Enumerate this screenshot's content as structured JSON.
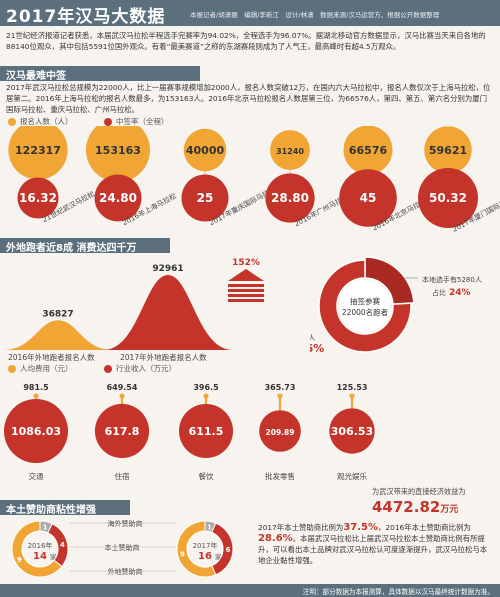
{
  "header": {
    "title": "2017年汉马大数据",
    "credits": "本报记者/胡潇丽　编辑/李新江　设计/林潇　数据来源/汉马运营方、根据公开数据整理"
  },
  "intro": "21世纪经济报道记者获悉，本届武汉马拉松半程选手完赛率为94.02%，全程选手为96.07%。据湖北移动官方数据显示，汉马比赛当天来自各地的88140位观众，其中包括5591位国外观众。有着“最美赛道”之称的东湖赛段则成为了人气王，最高峰时有超4.5万观众。",
  "section1": {
    "title": "汉马最难中签",
    "text": "2017年武汉马拉松总规模为22000人，比上一届赛事规模增加2000人，报名人数突破12万，在国内六大马拉松中，报名人数仅次于上海马拉松，位居第二。2016年上海马拉松的报名人数最多，为153163人。2016年北京马拉松报名人数居第三位，为66576人，第四、第五、第六名分别为厦门国际马拉松、重庆马拉松、广州马拉松。",
    "legend_applicants": "报名人数（人）",
    "legend_rate": "中签率（全程）"
  },
  "chart_data": [
    {
      "type": "bubble",
      "categories": [
        "21世纪武汉马拉松",
        "2016年上海马拉松",
        "2017年重庆国际马拉松",
        "2016年广州马拉松",
        "2016年北京马拉松",
        "2017年厦门国际马拉松"
      ],
      "series": [
        {
          "name": "报名人数（人）",
          "values": [
            122317,
            153163,
            40000,
            31240,
            66576,
            59621
          ]
        },
        {
          "name": "中签率（全程）",
          "values": [
            16.32,
            24.8,
            25,
            28.8,
            45,
            50.32
          ]
        }
      ]
    },
    {
      "type": "area",
      "categories": [
        "2016年外地跑者报名人数",
        "2017年外地跑者报名人数"
      ],
      "values": [
        36827,
        92961
      ],
      "growth": "152%"
    },
    {
      "type": "pie",
      "title": "抽签参赛 22000名跑者",
      "slices": [
        {
          "label": "本地选手有5280人",
          "pct_label": "占比24%",
          "value": 24
        },
        {
          "label": "外地选手16720人",
          "pct_label": "占比76%",
          "value": 76
        }
      ]
    },
    {
      "type": "bubble",
      "categories": [
        "交通",
        "住宿",
        "餐饮",
        "批发零售",
        "观光娱乐"
      ],
      "series": [
        {
          "name": "人均费用（元）",
          "values": [
            981.5,
            649.54,
            396.5,
            365.73,
            125.53
          ]
        },
        {
          "name": "行业收入（万元）",
          "values": [
            1086.03,
            617.8,
            611.5,
            209.89,
            306.53
          ]
        }
      ]
    },
    {
      "type": "pie",
      "title": "2016年 14家",
      "slices": [
        {
          "label": "海外赞助商",
          "value": 1
        },
        {
          "label": "本土赞助商",
          "value": 4
        },
        {
          "label": "外地赞助商",
          "value": 9
        }
      ]
    },
    {
      "type": "pie",
      "title": "2017年 16家",
      "slices": [
        {
          "label": "海外赞助商",
          "value": 1
        },
        {
          "label": "本土赞助商",
          "value": 6
        },
        {
          "label": "外地赞助商",
          "value": 9
        }
      ]
    }
  ],
  "section2": {
    "title": "外地跑者近8成  消费达四千万",
    "pie_center_line1": "抽签参赛",
    "pie_center_line2": "22000名跑者",
    "local_label": "本地选手有5280人",
    "local_pct_prefix": "占比",
    "local_pct": "24%",
    "outside_label": "外地选手16720人",
    "outside_pct_prefix": "占比",
    "outside_pct": "76%",
    "v2016": "36827",
    "v2017": "92961",
    "growth": "152%",
    "label2016": "2016年外地跑者报名人数",
    "label2017": "2017年外地跑者报名人数",
    "legend_cost": "人均费用（元）",
    "legend_income": "行业收入（万元）",
    "total_caption": "为武汉带来的直接经济效益为",
    "total_value": "4472.82",
    "total_unit": "万元"
  },
  "section3": {
    "title": "本土赞助商粘性增强",
    "overseas": "海外赞助商",
    "local": "本土赞助商",
    "outside": "外地赞助商",
    "y2016": "2016年",
    "c2016": "14",
    "y2017": "2017年",
    "c2017": "16",
    "unit": "家",
    "text_a": "2017年本土赞助商比例为",
    "pct_a": "37.5%",
    "text_b": "，2016年本土赞助商比例为",
    "pct_b": "28.6%",
    "text_c": "。本届武汉马拉松比上届武汉马拉松本土赞助商比例有所提升，可以看出本土品牌对武汉马拉松认可度逐渐提升，武汉马拉松与本地企业黏性增强。"
  },
  "footer": "注明：部分数据为本报测算，具体数据以汉马最终统计数据为准。",
  "colors": {
    "orange": "#f0a535",
    "red": "#c4342a",
    "slate": "#5b6f7d",
    "gray": "#9e9e9e"
  }
}
